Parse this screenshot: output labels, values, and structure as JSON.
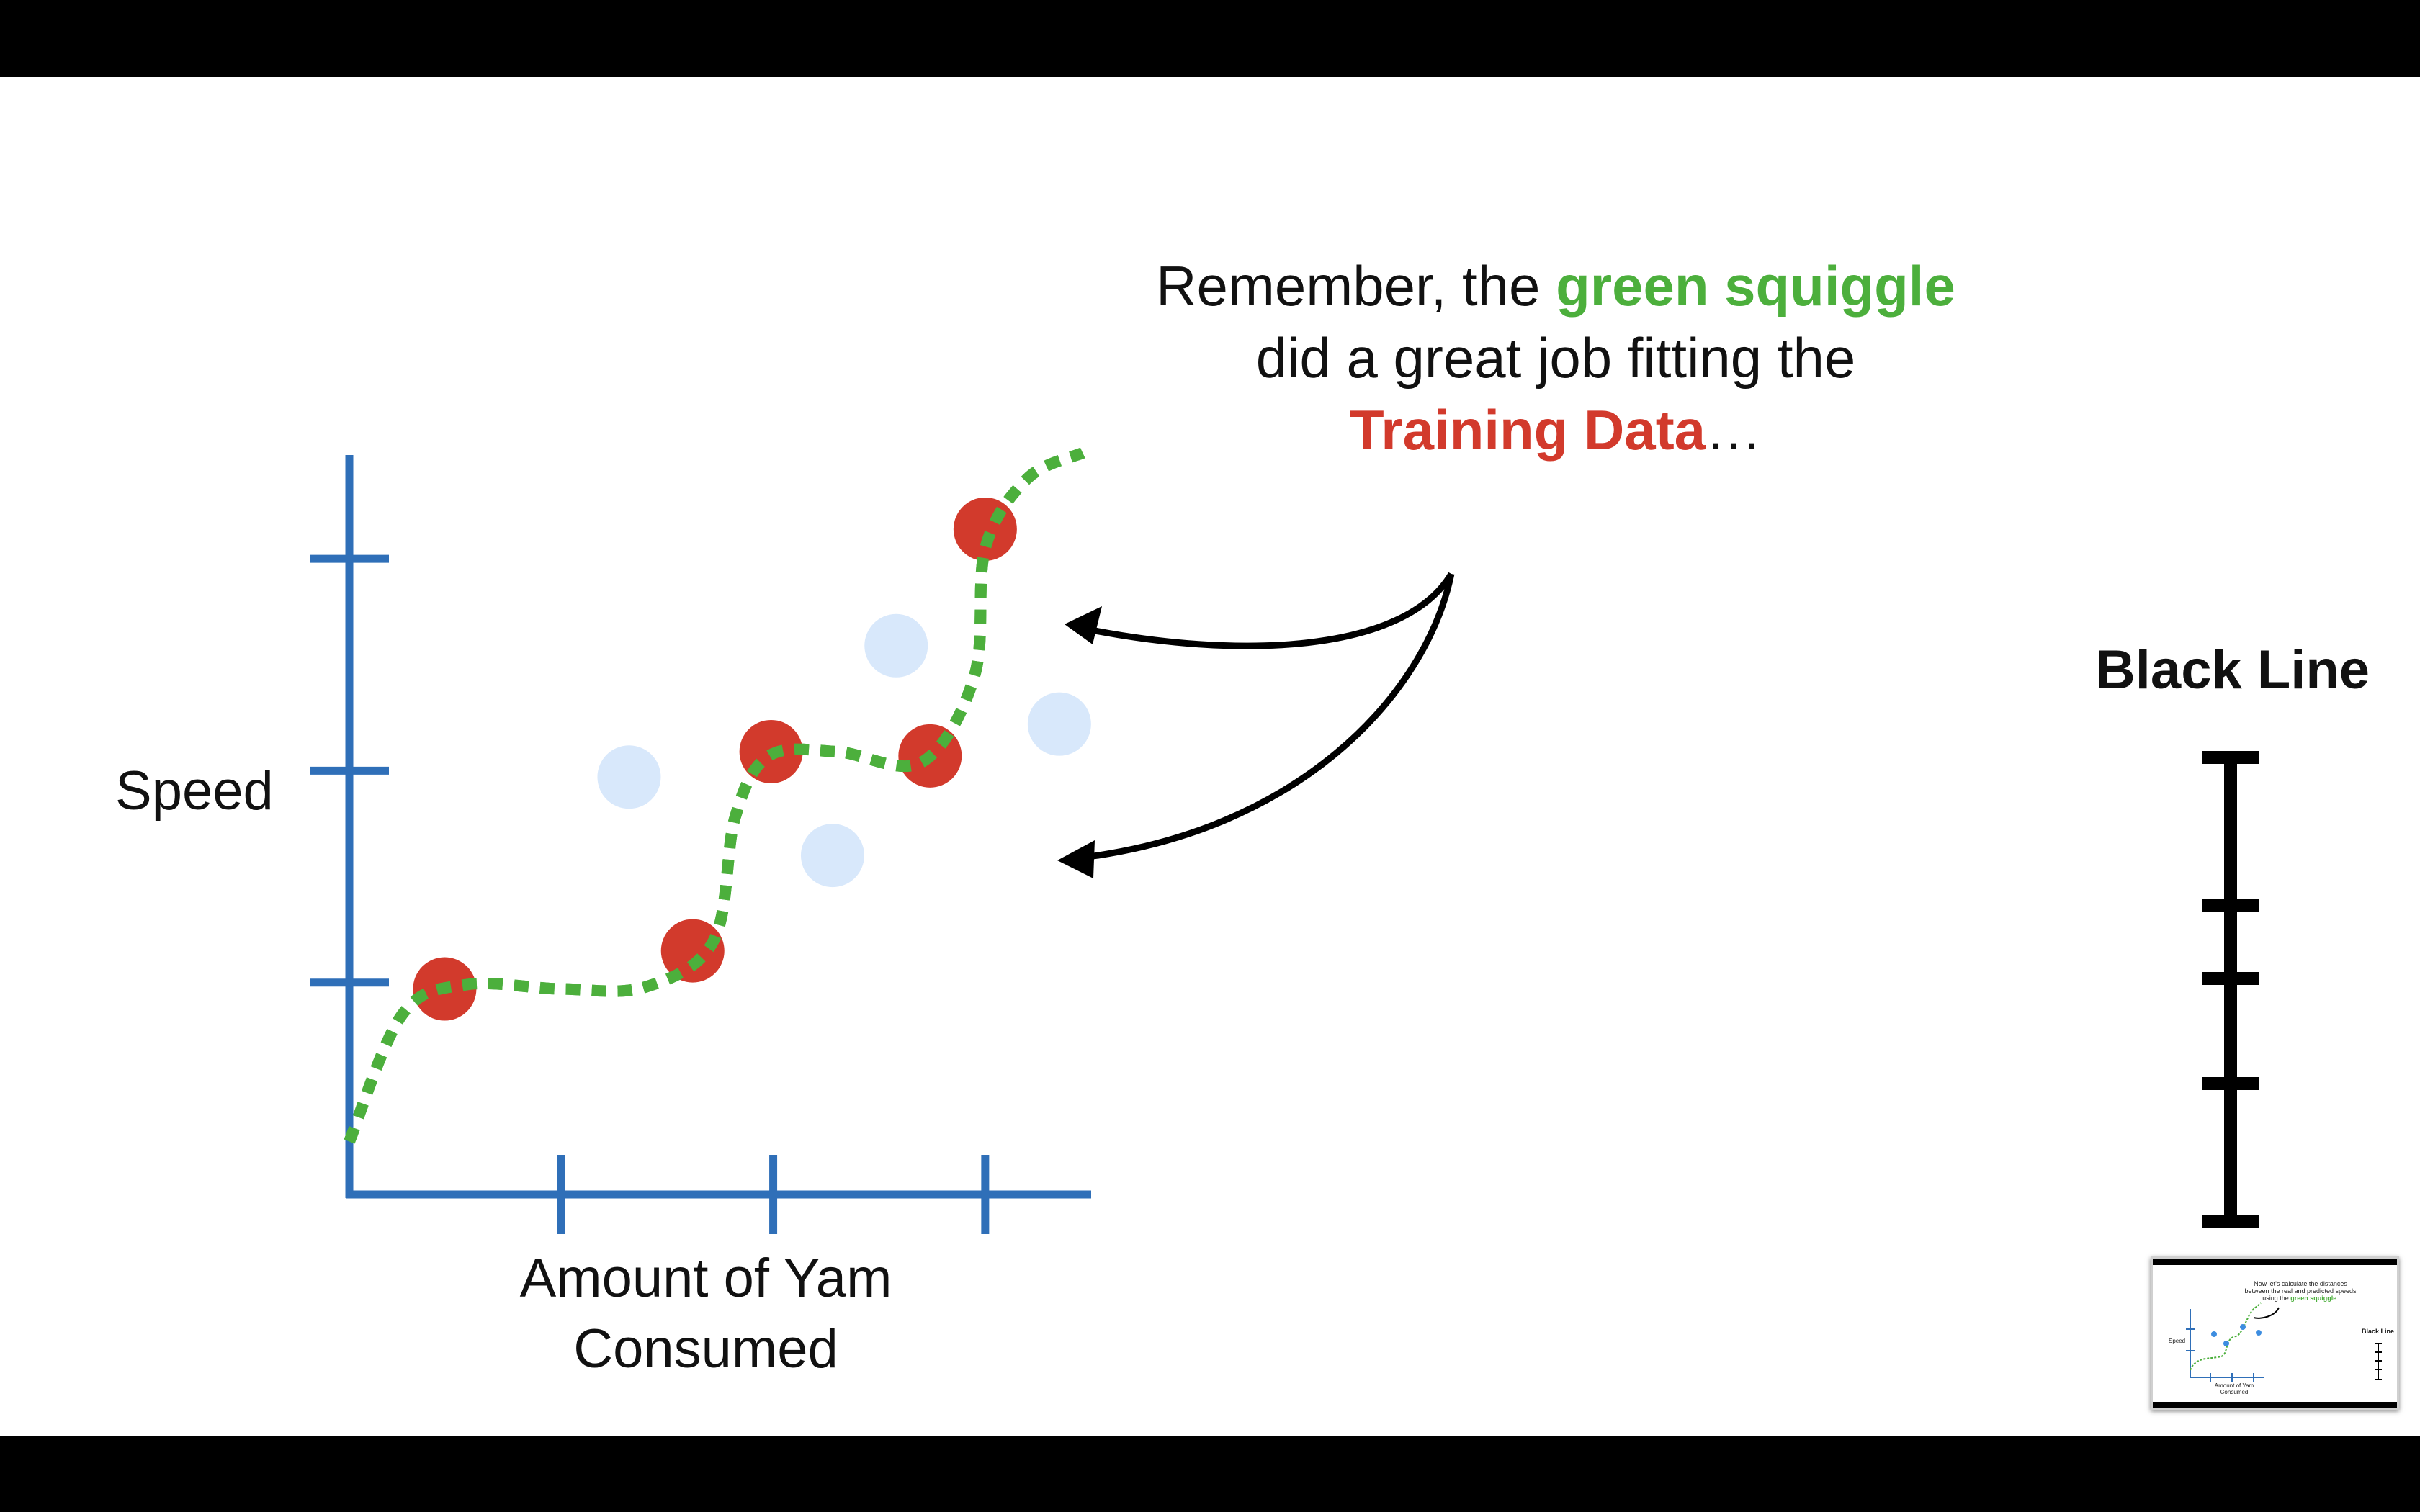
{
  "slide": {
    "callout": {
      "line1_prefix": "Remember, the ",
      "line1_highlight": "green squiggle",
      "line2": "did a great job fitting the",
      "line3_highlight": "Training Data",
      "line3_suffix": "…"
    },
    "ylabel": "Speed",
    "xlabel_line1": "Amount of Yam",
    "xlabel_line2": "Consumed",
    "black_line_title": "Black Line"
  },
  "thumbnail": {
    "caption_line1": "Now let's calculate the distances",
    "caption_line2": "between the real and predicted speeds",
    "caption_line3_prefix": "using the ",
    "caption_line3_highlight": "green squiggle",
    "caption_line3_suffix": ".",
    "ylabel": "Speed",
    "xlabel_line1": "Amount of Yam",
    "xlabel_line2": "Consumed",
    "black_line_title": "Black Line"
  },
  "colors": {
    "axis": "#2f6fb8",
    "squiggle": "#4caf3c",
    "training_point": "#d23a2c",
    "testing_point": "#d8e8fb",
    "arrow": "#000000",
    "black_line": "#000000",
    "background": "#ffffff",
    "letterbox": "#000000"
  },
  "chart_data": {
    "type": "scatter",
    "xlabel": "Amount of Yam Consumed",
    "ylabel": "Speed",
    "axis_ticks": {
      "x_count": 3,
      "y_count": 3
    },
    "training_points": [
      {
        "x": 0.45,
        "y": 0.97
      },
      {
        "x": 1.62,
        "y": 1.15
      },
      {
        "x": 1.99,
        "y": 2.09
      },
      {
        "x": 2.74,
        "y": 2.07
      },
      {
        "x": 3.0,
        "y": 3.14
      }
    ],
    "testing_points": [
      {
        "x": 1.32,
        "y": 1.97
      },
      {
        "x": 2.28,
        "y": 1.6
      },
      {
        "x": 2.58,
        "y": 2.59
      },
      {
        "x": 3.35,
        "y": 2.22
      }
    ],
    "squiggle": [
      {
        "x": 0.0,
        "y": 0.25
      },
      {
        "x": 0.25,
        "y": 0.85
      },
      {
        "x": 0.55,
        "y": 0.99
      },
      {
        "x": 1.0,
        "y": 0.97
      },
      {
        "x": 1.4,
        "y": 0.98
      },
      {
        "x": 1.72,
        "y": 1.2
      },
      {
        "x": 1.82,
        "y": 1.78
      },
      {
        "x": 1.98,
        "y": 2.07
      },
      {
        "x": 2.3,
        "y": 2.09
      },
      {
        "x": 2.7,
        "y": 2.04
      },
      {
        "x": 2.95,
        "y": 2.45
      },
      {
        "x": 3.0,
        "y": 3.05
      },
      {
        "x": 3.2,
        "y": 3.38
      },
      {
        "x": 3.46,
        "y": 3.5
      }
    ],
    "xlim": [
      0,
      3.5
    ],
    "ylim": [
      0,
      3.5
    ]
  },
  "black_line": {
    "tick_count": 5
  }
}
